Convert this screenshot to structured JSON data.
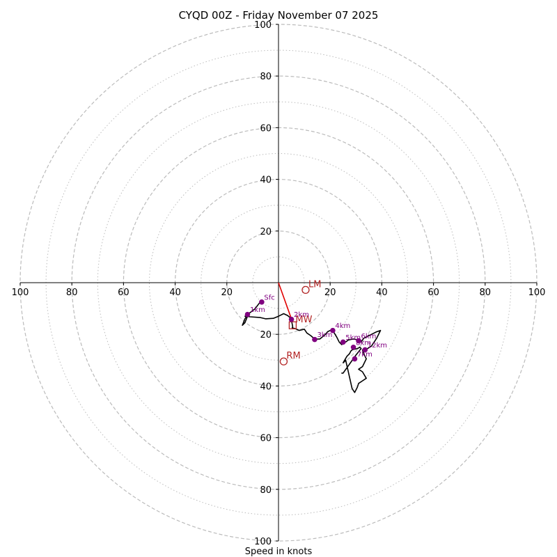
{
  "chart_data": {
    "type": "line",
    "chart_kind": "hodograph",
    "title": "CYQD 00Z - Friday November 07 2025",
    "xlabel": "Speed in knots",
    "ylabel": "",
    "units": "knots",
    "xlim": [
      -100,
      100
    ],
    "ylim": [
      -100,
      100
    ],
    "ring_major": [
      20,
      40,
      60,
      80,
      100
    ],
    "ring_minor": [
      10,
      30,
      50,
      70,
      90
    ],
    "x_tick_labels": [
      "100",
      "80",
      "60",
      "40",
      "20",
      "20",
      "40",
      "60",
      "80",
      "100"
    ],
    "y_tick_labels": [
      "100",
      "80",
      "60",
      "40",
      "20",
      "20",
      "40",
      "60",
      "80",
      "100"
    ],
    "colors": {
      "trace": "#000000",
      "markers": "#800080",
      "motion": "#b22222",
      "mean_wind_vector": "#e00000",
      "grid": "#bbbbbb",
      "axes": "#000000"
    },
    "series": [
      {
        "name": "hodograph-trace",
        "u": [
          -6.5,
          -7.5,
          -9,
          -10.5,
          -12,
          -13,
          -14,
          -13,
          -12,
          -13,
          -11,
          -7,
          -5,
          -2,
          0,
          2,
          3.5,
          4.5,
          5,
          5.2,
          5.5,
          5.3,
          6.5,
          8,
          10,
          11,
          12.5,
          14,
          16,
          18,
          19,
          20,
          21,
          22.5,
          23.5,
          24.5,
          25,
          26,
          27,
          28,
          29,
          30,
          31,
          32,
          33,
          34,
          35,
          36,
          37,
          38,
          39.5,
          38,
          36,
          34.5,
          32.5,
          33,
          34,
          32.5,
          31,
          32.5,
          34,
          32.5,
          31,
          30.5,
          29.5,
          28.5,
          26,
          25,
          26.5,
          27.5,
          28,
          28.5,
          30.5,
          31.5,
          32,
          30,
          25,
          24.5,
          24.8
        ],
        "v": [
          -7,
          -8,
          -10,
          -11.2,
          -12.3,
          -14,
          -16.5,
          -15.5,
          -13,
          -13,
          -13.2,
          -13.5,
          -14,
          -13.8,
          -13,
          -12,
          -12.7,
          -13.5,
          -14.2,
          -15.5,
          -17,
          -17.5,
          -17.8,
          -18.5,
          -18,
          -19.5,
          -20.5,
          -21.8,
          -21.8,
          -20.2,
          -19,
          -18.5,
          -18.5,
          -21,
          -23,
          -24,
          -23,
          -23,
          -22.2,
          -22,
          -21.8,
          -22,
          -22.5,
          -23,
          -21.5,
          -21,
          -20.5,
          -20,
          -19.5,
          -19,
          -18.5,
          -21.5,
          -24.5,
          -25.5,
          -26,
          -27.5,
          -29.5,
          -32.5,
          -33.5,
          -34.5,
          -37,
          -38,
          -39,
          -40.5,
          -42.5,
          -41,
          -30,
          -31,
          -28.5,
          -27.5,
          -26.5,
          -26,
          -25.5,
          -25,
          -25.5,
          -28,
          -35,
          -35,
          -35
        ]
      }
    ],
    "height_markers": [
      {
        "label": "Sfc",
        "u": -6.5,
        "v": -7.5
      },
      {
        "label": "1km",
        "u": -12,
        "v": -12.3
      },
      {
        "label": "2km",
        "u": 5,
        "v": -14.2
      },
      {
        "label": "3km",
        "u": 14,
        "v": -22
      },
      {
        "label": "4km",
        "u": 21,
        "v": -18.5
      },
      {
        "label": "5km",
        "u": 25,
        "v": -23
      },
      {
        "label": "6km",
        "u": 31,
        "v": -22.5
      },
      {
        "label": "8km",
        "u": 29,
        "v": -25
      },
      {
        "label": "12km",
        "u": 33.5,
        "v": -26
      },
      {
        "label": "7km",
        "u": 29.5,
        "v": -29.5
      }
    ],
    "storm_motion": [
      {
        "label": "LM",
        "u": 10.5,
        "v": -2.8
      },
      {
        "label": "MW",
        "u": 5.5,
        "v": -16.5
      },
      {
        "label": "RM",
        "u": 2,
        "v": -30.5
      }
    ],
    "mean_wind_vector": {
      "u": 5,
      "v": -14
    }
  }
}
